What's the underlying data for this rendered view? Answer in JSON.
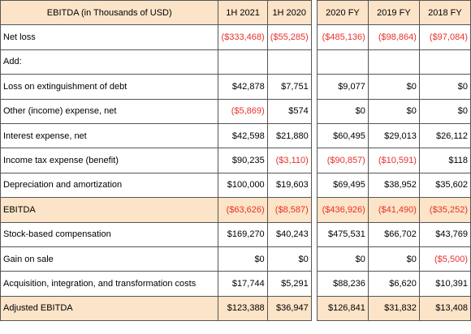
{
  "table": {
    "headers": [
      "EBITDA (in Thousands of USD)",
      "1H 2021",
      "1H 2020",
      "2020 FY",
      "2019 FY",
      "2018 FY"
    ],
    "rows": [
      {
        "label": "Net loss",
        "values": [
          "($333,468)",
          "($55,285)",
          "($485,136)",
          "($98,864)",
          "($97,084)"
        ],
        "highlight": false
      },
      {
        "label": "Add:",
        "values": [
          "",
          "",
          "",
          "",
          ""
        ],
        "highlight": false
      },
      {
        "label": "Loss on extinguishment of debt",
        "values": [
          "$42,878",
          "$7,751",
          "$9,077",
          "$0",
          "$0"
        ],
        "highlight": false
      },
      {
        "label": "Other (income) expense, net",
        "values": [
          "($5,869)",
          "$574",
          "$0",
          "$0",
          "$0"
        ],
        "highlight": false
      },
      {
        "label": "Interest expense, net",
        "values": [
          "$42,598",
          "$21,880",
          "$60,495",
          "$29,013",
          "$26,112"
        ],
        "highlight": false
      },
      {
        "label": "Income tax expense (benefit)",
        "values": [
          "$90,235",
          "($3,110)",
          "($90,857)",
          "($10,591)",
          "$118"
        ],
        "highlight": false
      },
      {
        "label": "Depreciation and amortization",
        "values": [
          "$100,000",
          "$19,603",
          "$69,495",
          "$38,952",
          "$35,602"
        ],
        "highlight": false
      },
      {
        "label": "EBITDA",
        "values": [
          "($63,626)",
          "($8,587)",
          "($436,926)",
          "($41,490)",
          "($35,252)"
        ],
        "highlight": true
      },
      {
        "label": "Stock-based compensation",
        "values": [
          "$169,270",
          "$40,243",
          "$475,531",
          "$66,702",
          "$43,769"
        ],
        "highlight": false
      },
      {
        "label": "Gain on sale",
        "values": [
          "$0",
          "$0",
          "$0",
          "$0",
          "($5,500)"
        ],
        "highlight": false
      },
      {
        "label": "Acquisition, integration, and transformation costs",
        "values": [
          "$17,744",
          "$5,291",
          "$88,236",
          "$6,620",
          "$10,391"
        ],
        "highlight": false
      },
      {
        "label": "Adjusted EBITDA",
        "values": [
          "$123,388",
          "$36,947",
          "$126,841",
          "$31,832",
          "$13,408"
        ],
        "highlight": true
      }
    ],
    "colors": {
      "header_fill": "#fce4c8",
      "highlight_fill": "#fce4c8",
      "negative_text": "#e8302b",
      "border": "#555555"
    }
  }
}
